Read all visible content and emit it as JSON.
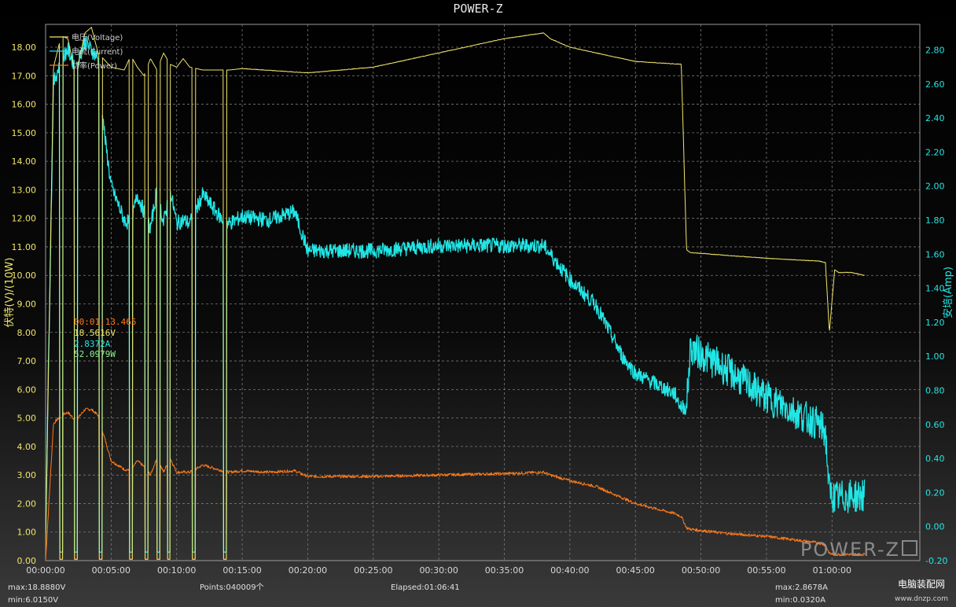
{
  "chart_title": "POWER-Z",
  "chart_data": {
    "type": "line",
    "xlabel": "",
    "ylabel_left": "伏特(V)/(10W)",
    "ylabel_right": "安培(Amp)",
    "ylim_left": [
      0,
      18.8
    ],
    "ylim_right": [
      -0.2,
      2.95
    ],
    "x_range_min": [
      0,
      66.7
    ],
    "grid": true,
    "legend_position": "top-left",
    "x_ticks": [
      "00:00:00",
      "00:05:00",
      "00:10:00",
      "00:15:00",
      "00:20:00",
      "00:25:00",
      "00:30:00",
      "00:35:00",
      "00:40:00",
      "00:45:00",
      "00:50:00",
      "00:55:00",
      "01:00:00"
    ],
    "y_left_ticks": [
      "0.00",
      "1.00",
      "2.00",
      "3.00",
      "4.00",
      "5.00",
      "6.00",
      "7.00",
      "8.00",
      "9.00",
      "10.00",
      "11.00",
      "12.00",
      "13.00",
      "14.00",
      "15.00",
      "16.00",
      "17.00",
      "18.00"
    ],
    "y_right_ticks": [
      "-0.20",
      "0.00",
      "0.20",
      "0.40",
      "0.60",
      "0.80",
      "1.00",
      "1.20",
      "1.40",
      "1.60",
      "1.80",
      "2.00",
      "2.20",
      "2.40",
      "2.60",
      "2.80"
    ],
    "series": [
      {
        "name": "电压(Voltage)",
        "color": "#f0e56a",
        "axis": "left",
        "x": [
          0,
          0.6,
          1.2,
          1.7,
          2.3,
          3.0,
          3.5,
          4.0,
          5.0,
          6.0,
          6.5,
          7.0,
          7.5,
          8.0,
          8.5,
          9.0,
          9.5,
          10.0,
          10.5,
          11.0,
          12.0,
          13.5,
          14.0,
          15.0,
          20.0,
          25.0,
          30.0,
          35.0,
          38.0,
          38.5,
          40.0,
          45.0,
          48.5,
          48.9,
          49.2,
          52.0,
          55.0,
          59.0,
          59.5,
          59.8,
          60.2,
          60.5,
          61.5,
          62.5
        ],
        "y": [
          0.5,
          17.3,
          18.4,
          18.3,
          17.0,
          18.5,
          18.7,
          17.8,
          17.3,
          17.2,
          17.7,
          17.3,
          17.0,
          17.6,
          17.2,
          17.8,
          17.4,
          17.3,
          17.6,
          17.3,
          17.2,
          17.2,
          17.2,
          17.25,
          17.1,
          17.3,
          17.8,
          18.3,
          18.5,
          18.3,
          18.0,
          17.5,
          17.4,
          10.9,
          10.8,
          10.7,
          10.6,
          10.5,
          10.45,
          8.0,
          10.2,
          10.1,
          10.1,
          10.0
        ]
      },
      {
        "name": "电流(Current)",
        "color": "#22e6e6",
        "axis": "right",
        "x": [
          0,
          0.6,
          1.2,
          1.7,
          2.3,
          3.0,
          3.5,
          4.0,
          4.5,
          5.0,
          6.0,
          6.5,
          7.0,
          7.5,
          8.0,
          8.5,
          9.0,
          9.5,
          10.0,
          10.5,
          11.0,
          12.0,
          13.5,
          14.0,
          15.0,
          17.0,
          19.0,
          20.0,
          25.0,
          30.0,
          35.0,
          38.0,
          38.5,
          40.0,
          42.0,
          44.0,
          45.0,
          48.0,
          48.5,
          48.9,
          49.2,
          52.0,
          55.0,
          59.0,
          59.5,
          59.8,
          60.2,
          61.5,
          62.5
        ],
        "y": [
          0.0,
          2.6,
          2.75,
          2.8,
          2.7,
          2.85,
          2.8,
          2.75,
          2.3,
          2.0,
          1.8,
          1.78,
          1.95,
          1.85,
          1.75,
          1.98,
          1.78,
          1.98,
          1.78,
          1.8,
          1.78,
          1.95,
          1.8,
          1.78,
          1.82,
          1.8,
          1.85,
          1.62,
          1.62,
          1.65,
          1.65,
          1.65,
          1.6,
          1.45,
          1.3,
          1.0,
          0.9,
          0.78,
          0.7,
          0.7,
          1.05,
          0.92,
          0.76,
          0.6,
          0.55,
          0.2,
          0.17,
          0.18,
          0.18
        ]
      },
      {
        "name": "功率(Power)",
        "color": "#ff7a1a",
        "axis": "left",
        "x": [
          0,
          0.6,
          1.2,
          1.7,
          2.3,
          3.0,
          3.5,
          4.0,
          4.5,
          5.0,
          6.0,
          6.5,
          7.0,
          7.5,
          8.0,
          8.5,
          9.0,
          9.5,
          10.0,
          10.5,
          11.0,
          12.0,
          13.5,
          14.0,
          15.0,
          17.0,
          19.0,
          20.0,
          25.0,
          30.0,
          35.0,
          38.0,
          38.5,
          40.0,
          42.0,
          44.0,
          45.0,
          48.0,
          48.5,
          48.9,
          49.2,
          52.0,
          55.0,
          59.0,
          59.5,
          59.8,
          60.2,
          61.5,
          62.5
        ],
        "y": [
          0.0,
          4.8,
          5.1,
          5.2,
          4.9,
          5.3,
          5.3,
          5.1,
          4.3,
          3.5,
          3.2,
          3.15,
          3.5,
          3.3,
          3.0,
          3.6,
          3.1,
          3.6,
          3.1,
          3.1,
          3.1,
          3.35,
          3.15,
          3.1,
          3.15,
          3.1,
          3.15,
          2.95,
          2.95,
          3.0,
          3.05,
          3.1,
          3.0,
          2.8,
          2.6,
          2.2,
          2.0,
          1.65,
          1.55,
          1.15,
          1.1,
          0.95,
          0.85,
          0.62,
          0.55,
          0.25,
          0.22,
          0.22,
          0.22
        ]
      }
    ],
    "dropouts_min": [
      1.2,
      2.3,
      4.2,
      6.5,
      7.7,
      8.6,
      9.4,
      11.3,
      13.7
    ]
  },
  "readout": {
    "time": "00:01:13.465",
    "voltage": "18.5616V",
    "current": "2.8372A",
    "power": "52.0979W"
  },
  "footer": {
    "vmax": "max:18.8880V",
    "vmin": "min:6.0150V",
    "points": "Points:040009个",
    "elapsed": "Elapsed:01:06:41",
    "amax": "max:2.8678A",
    "amin": "min:0.0320A"
  },
  "brand": "POWER-Z",
  "watermark": {
    "name": "电脑装配网",
    "url": "www.dnzp.com"
  }
}
